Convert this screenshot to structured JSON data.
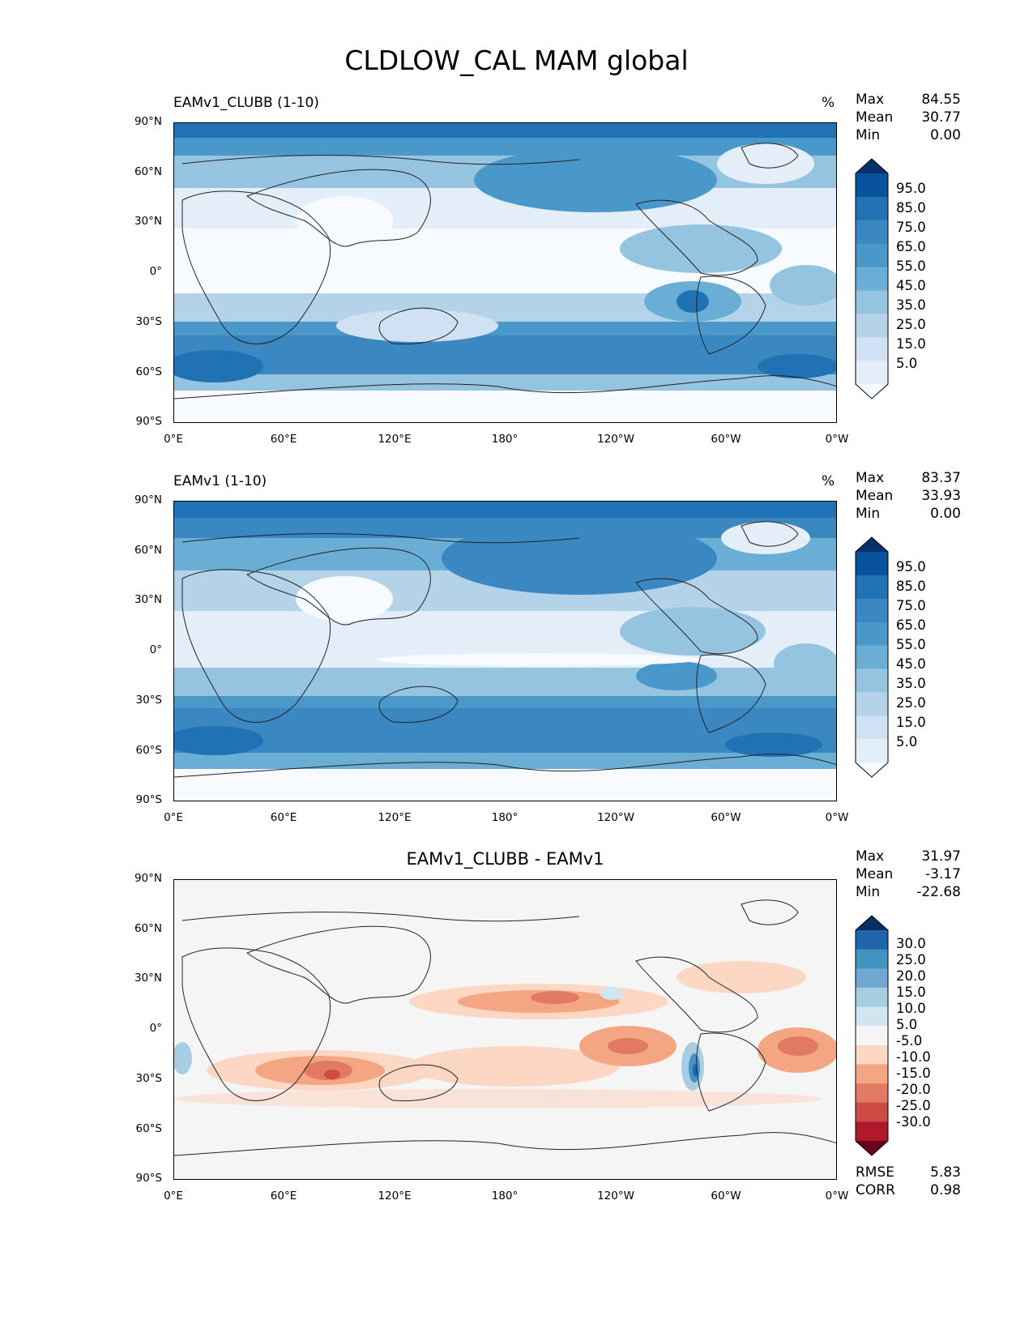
{
  "title": "CLDLOW_CAL MAM global",
  "lon_ticks": [
    "0°E",
    "60°E",
    "120°E",
    "180°",
    "120°W",
    "60°W",
    "0°W"
  ],
  "lat_ticks": [
    "90°N",
    "60°N",
    "30°N",
    "0°",
    "30°S",
    "60°S",
    "90°S"
  ],
  "panels": [
    {
      "title": "EAMv1_CLUBB (1-10)",
      "units": "%",
      "stats": [
        {
          "label": "Max",
          "value": "84.55"
        },
        {
          "label": "Mean",
          "value": "30.77"
        },
        {
          "label": "Min",
          "value": "0.00"
        }
      ],
      "colorbar": {
        "labels": [
          "95.0",
          "85.0",
          "75.0",
          "65.0",
          "55.0",
          "45.0",
          "35.0",
          "25.0",
          "15.0",
          "5.0"
        ],
        "colors": [
          "#08306b",
          "#08519c",
          "#2171b5",
          "#3b87c2",
          "#4a98c9",
          "#6aaed6",
          "#94c4df",
          "#b4d3e9",
          "#cfe1f2",
          "#e3eef8",
          "#f7fbff"
        ]
      }
    },
    {
      "title": "EAMv1 (1-10)",
      "units": "%",
      "stats": [
        {
          "label": "Max",
          "value": "83.37"
        },
        {
          "label": "Mean",
          "value": "33.93"
        },
        {
          "label": "Min",
          "value": "0.00"
        }
      ],
      "colorbar": {
        "labels": [
          "95.0",
          "85.0",
          "75.0",
          "65.0",
          "55.0",
          "45.0",
          "35.0",
          "25.0",
          "15.0",
          "5.0"
        ],
        "colors": [
          "#08306b",
          "#08519c",
          "#2171b5",
          "#3b87c2",
          "#4a98c9",
          "#6aaed6",
          "#94c4df",
          "#b4d3e9",
          "#cfe1f2",
          "#e3eef8",
          "#f7fbff"
        ]
      }
    },
    {
      "title": "EAMv1_CLUBB - EAMv1",
      "units": "",
      "stats": [
        {
          "label": "Max",
          "value": "31.97"
        },
        {
          "label": "Mean",
          "value": "-3.17"
        },
        {
          "label": "Min",
          "value": "-22.68"
        }
      ],
      "colorbar": {
        "labels": [
          "30.0",
          "25.0",
          "20.0",
          "15.0",
          "10.0",
          "5.0",
          "-5.0",
          "-10.0",
          "-15.0",
          "-20.0",
          "-25.0",
          "-30.0"
        ],
        "colors": [
          "#053061",
          "#2166ac",
          "#4393c3",
          "#6fa8d1",
          "#a6cde2",
          "#d1e5f0",
          "#f5f5f5",
          "#fbd7c4",
          "#f4a582",
          "#e27a63",
          "#cc4c45",
          "#b2182b",
          "#67001f"
        ]
      },
      "metrics": [
        {
          "label": "RMSE",
          "value": "5.83"
        },
        {
          "label": "CORR",
          "value": "0.98"
        }
      ]
    }
  ],
  "chart_data": {
    "type": "heatmap",
    "title": "CLDLOW_CAL MAM global",
    "projection": "plate carree, longitude 0°E–360°, latitude 90°S–90°N",
    "maps": [
      {
        "name": "EAMv1_CLUBB (1-10)",
        "units": "%",
        "max": 84.55,
        "mean": 30.77,
        "min": 0.0,
        "levels": [
          5,
          15,
          25,
          35,
          45,
          55,
          65,
          75,
          85,
          95
        ],
        "colormap": "Blues"
      },
      {
        "name": "EAMv1 (1-10)",
        "units": "%",
        "max": 83.37,
        "mean": 33.93,
        "min": 0.0,
        "levels": [
          5,
          15,
          25,
          35,
          45,
          55,
          65,
          75,
          85,
          95
        ],
        "colormap": "Blues"
      },
      {
        "name": "EAMv1_CLUBB - EAMv1",
        "max": 31.97,
        "mean": -3.17,
        "min": -22.68,
        "levels": [
          -30,
          -25,
          -20,
          -15,
          -10,
          -5,
          5,
          10,
          15,
          20,
          25,
          30
        ],
        "colormap": "RdBu",
        "rmse": 5.83,
        "corr": 0.98
      }
    ]
  }
}
